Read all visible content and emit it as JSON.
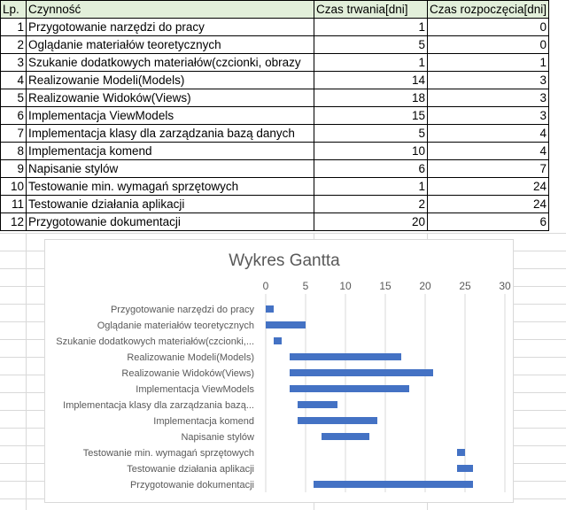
{
  "table": {
    "headers": [
      "Lp.",
      "Czynność",
      "Czas trwania[dni]",
      "Czas rozpoczęcia[dni]"
    ],
    "rows": [
      {
        "lp": "1",
        "task": "Przygotowanie narzędzi do pracy",
        "duration": "1",
        "start": "0"
      },
      {
        "lp": "2",
        "task": "Oglądanie materiałów teoretycznych",
        "duration": "5",
        "start": "0"
      },
      {
        "lp": "3",
        "task": "Szukanie dodatkowych materiałów(czcionki, obrazy",
        "duration": "1",
        "start": "1"
      },
      {
        "lp": "4",
        "task": "Realizowanie Modeli(Models)",
        "duration": "14",
        "start": "3"
      },
      {
        "lp": "5",
        "task": "Realizowanie Widoków(Views)",
        "duration": "18",
        "start": "3"
      },
      {
        "lp": "6",
        "task": "Implementacja ViewModels",
        "duration": "15",
        "start": "3"
      },
      {
        "lp": "7",
        "task": "Implementacja klasy dla zarządzania bazą danych",
        "duration": "5",
        "start": "4"
      },
      {
        "lp": "8",
        "task": "Implementacja komend",
        "duration": "10",
        "start": "4"
      },
      {
        "lp": "9",
        "task": "Napisanie stylów",
        "duration": "6",
        "start": "7"
      },
      {
        "lp": "10",
        "task": "Testowanie min. wymagań sprzętowych",
        "duration": "1",
        "start": "24"
      },
      {
        "lp": "11",
        "task": "Testowanie działania aplikacji",
        "duration": "2",
        "start": "24"
      },
      {
        "lp": "12",
        "task": "Przygotowanie dokumentacji",
        "duration": "20",
        "start": "6"
      }
    ]
  },
  "chart_data": {
    "type": "bar",
    "orientation": "horizontal",
    "stacked_invisible_offset": true,
    "title": "Wykres Gantta",
    "categories": [
      "Przygotowanie narzędzi do pracy",
      "Oglądanie materiałów teoretycznych",
      "Szukanie dodatkowych materiałów(czcionki,...",
      "Realizowanie Modeli(Models)",
      "Realizowanie Widoków(Views)",
      "Implementacja ViewModels",
      "Implementacja klasy dla zarządzania bazą...",
      "Implementacja komend",
      "Napisanie stylów",
      "Testowanie min. wymagań sprzętowych",
      "Testowanie działania aplikacji",
      "Przygotowanie dokumentacji"
    ],
    "start": [
      0,
      0,
      1,
      3,
      3,
      3,
      4,
      4,
      7,
      24,
      24,
      6
    ],
    "duration": [
      1,
      5,
      1,
      14,
      18,
      15,
      5,
      10,
      6,
      1,
      2,
      20
    ],
    "xlim": [
      0,
      30
    ],
    "xticks": [
      0,
      5,
      10,
      15,
      20,
      25,
      30
    ],
    "x_axis_position": "top",
    "grid": true,
    "legend": "none",
    "bar_color": "#4472c4"
  }
}
